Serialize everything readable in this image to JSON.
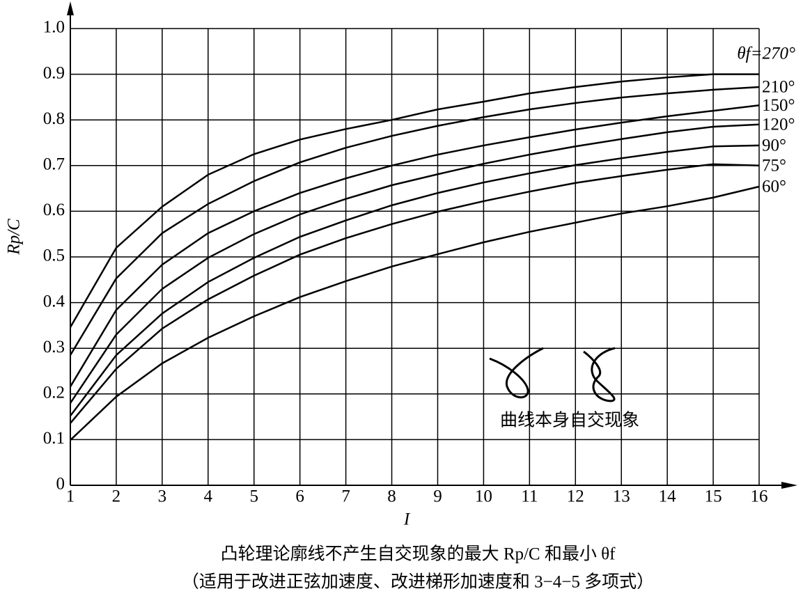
{
  "chart_data": {
    "type": "line",
    "x": [
      1,
      2,
      3,
      4,
      5,
      6,
      7,
      8,
      9,
      10,
      11,
      12,
      13,
      14,
      15,
      16
    ],
    "xlim": [
      1,
      16
    ],
    "xticks": [
      1,
      2,
      3,
      4,
      5,
      6,
      7,
      8,
      9,
      10,
      11,
      12,
      13,
      14,
      15,
      16
    ],
    "ylim": [
      0,
      1
    ],
    "yticks": [
      0,
      0.1,
      0.2,
      0.3,
      0.4,
      0.5,
      0.6,
      0.7,
      0.8,
      0.9,
      {
        "value": 1,
        "label": "1.0"
      }
    ],
    "grid": true,
    "x_label": "I",
    "y_label": "Rp/C",
    "annotation": "曲线本身自交现象",
    "caption": [
      "凸轮理论廓线不产生自交现象的最大 Rp/C 和最小 θf",
      "（适用于改进正弦加速度、改进梯形加速度和 3−4−5 多项式）"
    ],
    "series": [
      {
        "name": "θf=270°",
        "color": "#000000",
        "values": [
          0.346,
          0.52,
          0.61,
          0.68,
          0.725,
          0.757,
          0.78,
          0.8,
          0.823,
          0.84,
          0.858,
          0.872,
          0.884,
          0.893,
          0.9,
          0.9
        ]
      },
      {
        "name": "210°",
        "color": "#000000",
        "values": [
          0.285,
          0.453,
          0.552,
          0.616,
          0.666,
          0.707,
          0.739,
          0.765,
          0.787,
          0.806,
          0.823,
          0.837,
          0.849,
          0.858,
          0.866,
          0.872
        ]
      },
      {
        "name": "150°",
        "color": "#000000",
        "values": [
          0.216,
          0.384,
          0.483,
          0.552,
          0.6,
          0.64,
          0.672,
          0.7,
          0.724,
          0.744,
          0.762,
          0.779,
          0.794,
          0.808,
          0.82,
          0.832
        ]
      },
      {
        "name": "120°",
        "color": "#000000",
        "values": [
          0.18,
          0.33,
          0.43,
          0.498,
          0.55,
          0.593,
          0.627,
          0.657,
          0.681,
          0.704,
          0.724,
          0.742,
          0.758,
          0.773,
          0.785,
          0.79
        ]
      },
      {
        "name": "90°",
        "color": "#000000",
        "values": [
          0.152,
          0.285,
          0.376,
          0.445,
          0.498,
          0.544,
          0.58,
          0.613,
          0.64,
          0.663,
          0.683,
          0.701,
          0.716,
          0.73,
          0.742,
          0.744
        ]
      },
      {
        "name": "75°",
        "color": "#000000",
        "values": [
          0.136,
          0.255,
          0.343,
          0.407,
          0.459,
          0.505,
          0.541,
          0.572,
          0.599,
          0.622,
          0.643,
          0.662,
          0.677,
          0.691,
          0.703,
          0.7
        ]
      },
      {
        "name": "60°",
        "color": "#000000",
        "values": [
          0.099,
          0.194,
          0.267,
          0.323,
          0.37,
          0.412,
          0.447,
          0.479,
          0.506,
          0.532,
          0.555,
          0.575,
          0.595,
          0.611,
          0.63,
          0.654
        ]
      }
    ]
  }
}
